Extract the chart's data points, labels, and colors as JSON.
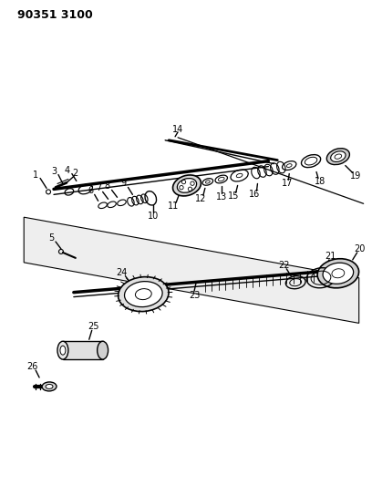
{
  "title": "90351 3100",
  "bg_color": "#ffffff",
  "line_color": "#000000",
  "fig_width": 4.08,
  "fig_height": 5.33,
  "dpi": 100
}
